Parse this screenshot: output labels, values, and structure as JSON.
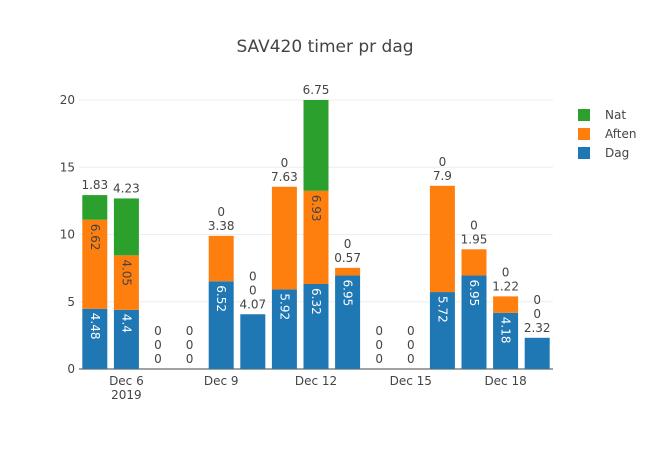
{
  "chart_data": {
    "type": "bar",
    "barmode": "stack",
    "title": "SAV420 timer pr dag",
    "xlabel": "",
    "ylabel": "",
    "categories": [
      "Dec 5",
      "Dec 6",
      "Dec 7",
      "Dec 8",
      "Dec 9",
      "Dec 10",
      "Dec 11",
      "Dec 12",
      "Dec 13",
      "Dec 14",
      "Dec 15",
      "Dec 16",
      "Dec 17",
      "Dec 18",
      "Dec 19"
    ],
    "x_tick_labels": [
      {
        "at": "Dec 6",
        "label": "Dec 6",
        "sub": "2019"
      },
      {
        "at": "Dec 9",
        "label": "Dec 9",
        "sub": ""
      },
      {
        "at": "Dec 12",
        "label": "Dec 12",
        "sub": ""
      },
      {
        "at": "Dec 15",
        "label": "Dec 15",
        "sub": ""
      },
      {
        "at": "Dec 18",
        "label": "Dec 18",
        "sub": ""
      }
    ],
    "ylim": [
      0,
      20
    ],
    "y_ticks": [
      0,
      5,
      10,
      15,
      20
    ],
    "grid": true,
    "legend_position": "top-right",
    "series": [
      {
        "name": "Dag",
        "color": "#1f77b4",
        "values": [
          4.48,
          4.4,
          0,
          0,
          6.52,
          4.07,
          5.92,
          6.32,
          6.95,
          0,
          0,
          5.72,
          6.95,
          4.18,
          2.32
        ]
      },
      {
        "name": "Aften",
        "color": "#ff7f0e",
        "values": [
          6.62,
          4.05,
          0,
          0,
          3.38,
          0,
          7.63,
          6.93,
          0.57,
          0,
          0,
          7.9,
          1.95,
          1.22,
          0
        ]
      },
      {
        "name": "Nat",
        "color": "#2ca02c",
        "values": [
          1.83,
          4.23,
          0,
          0,
          0,
          0,
          0,
          6.75,
          0,
          0,
          0,
          0,
          0,
          0,
          0
        ]
      }
    ]
  }
}
